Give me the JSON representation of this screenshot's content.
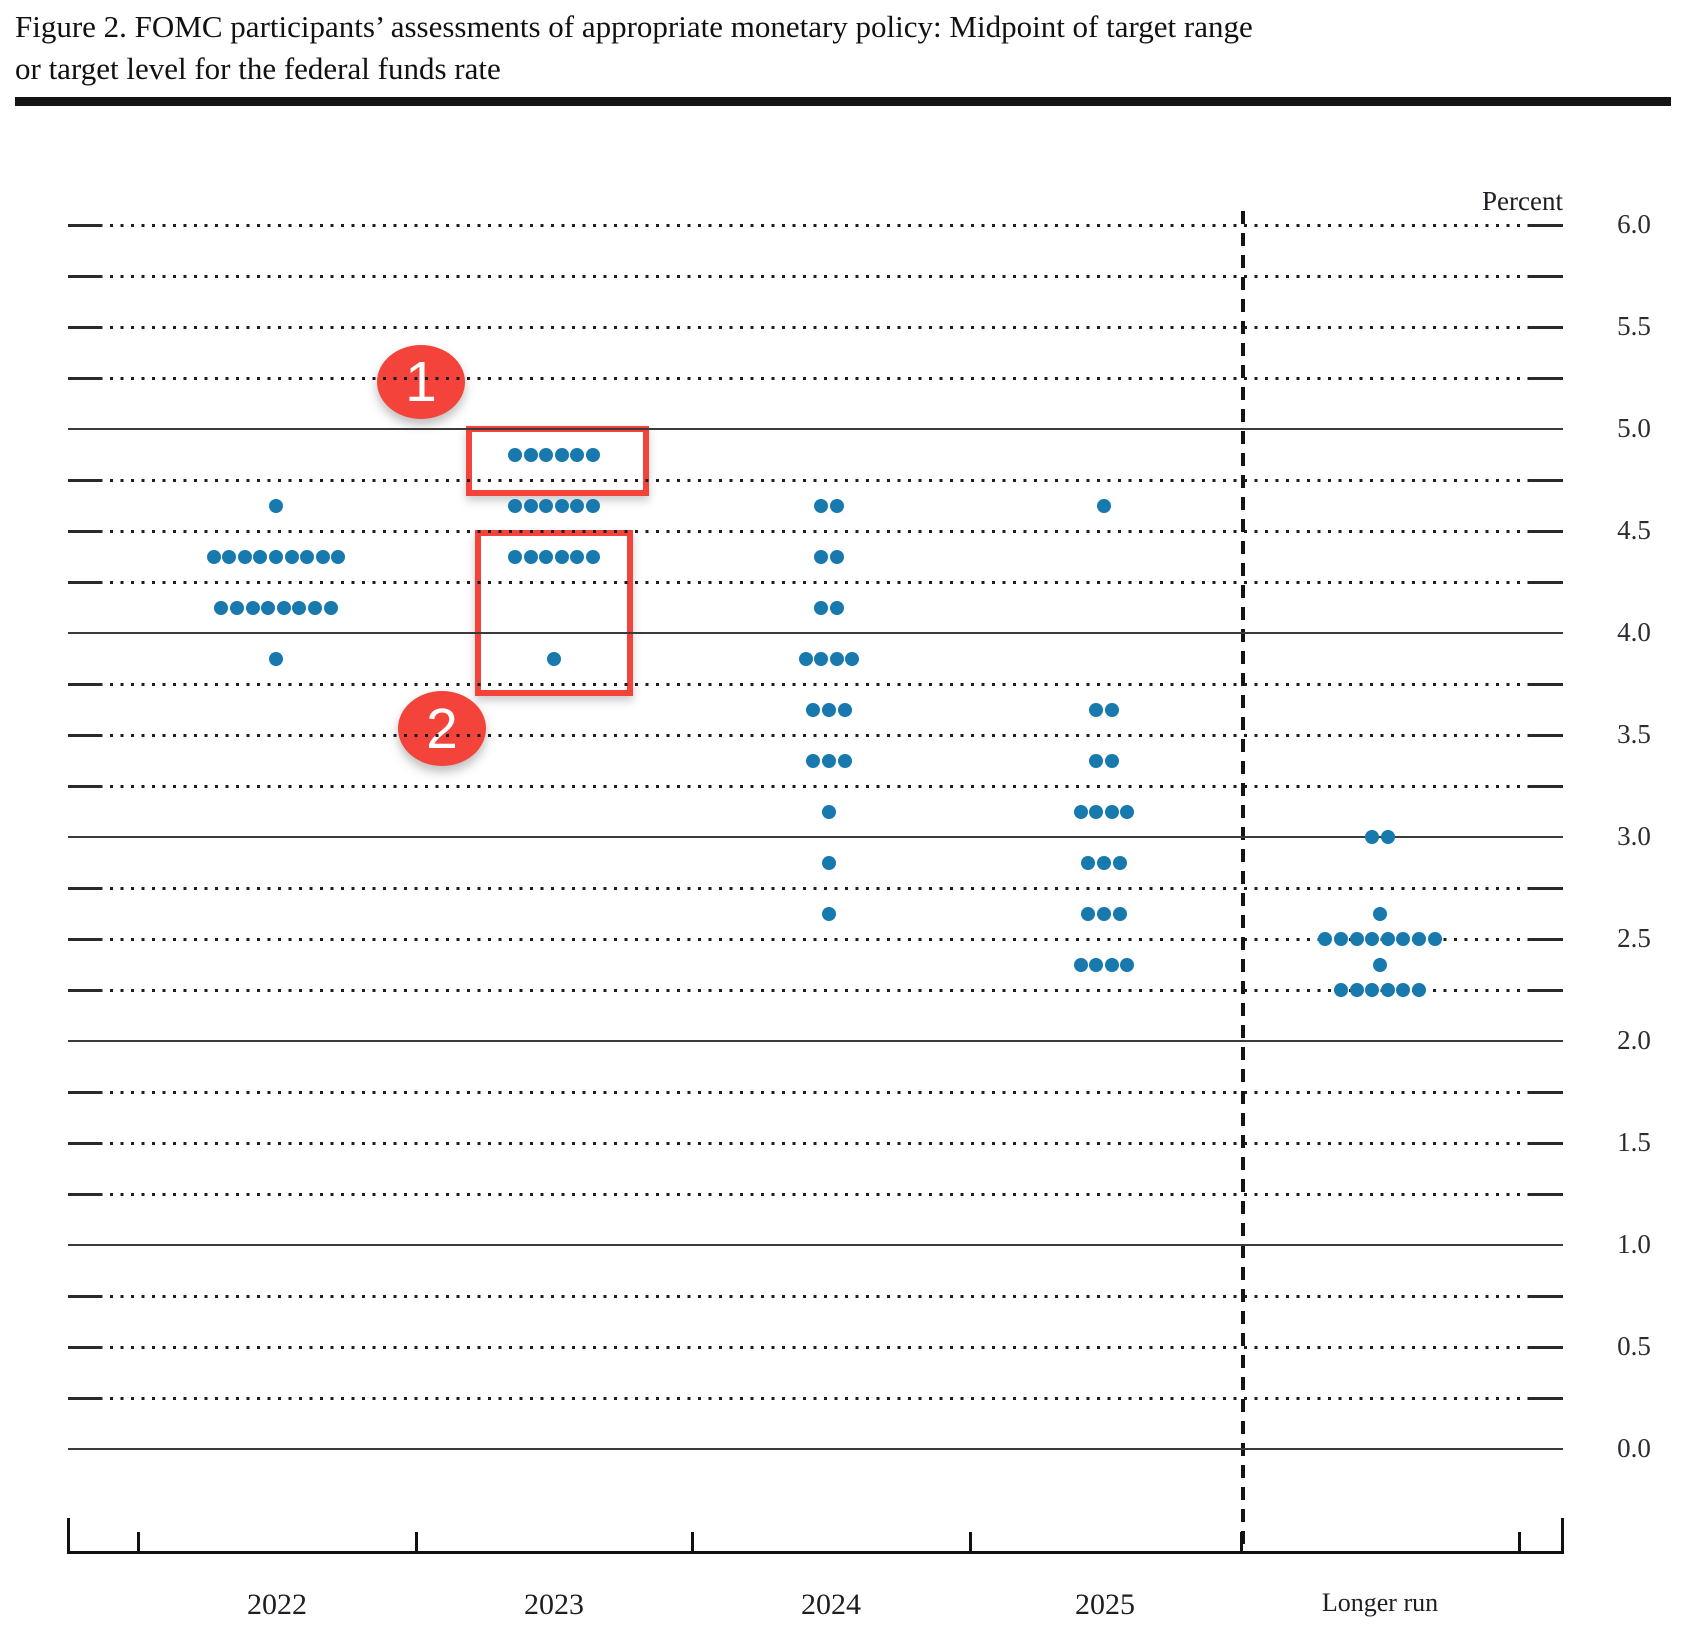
{
  "figure": {
    "title_line1": "Figure 2.  FOMC participants’ assessments of appropriate monetary policy:  Midpoint of target range",
    "title_line2": "or target level for the federal funds rate",
    "unit_label": "Percent"
  },
  "y_axis": {
    "tick_labels": [
      "6.0",
      "5.5",
      "5.0",
      "4.5",
      "4.0",
      "3.5",
      "3.0",
      "2.5",
      "2.0",
      "1.5",
      "1.0",
      "0.5",
      "0.0"
    ]
  },
  "x_axis": {
    "labels": [
      "2022",
      "2023",
      "2024",
      "2025",
      "Longer run"
    ]
  },
  "annotations": {
    "accent_color": "#f4433b",
    "callouts": [
      {
        "label": "1"
      },
      {
        "label": "2"
      }
    ]
  },
  "chart_data": {
    "type": "scatter",
    "title": "FOMC participants’ assessments of appropriate monetary policy: Midpoint of target range or target level for the federal funds rate",
    "ylabel": "Percent",
    "ylim": [
      0,
      6
    ],
    "ytick_minor_step": 0.25,
    "ytick_label_step": 0.5,
    "grid": "dotted lines every 0.25; solid lines at whole percents; dashed vertical separator before Longer run",
    "legend_position": "none",
    "dot_color": "#1779ad",
    "categories": [
      "2022",
      "2023",
      "2024",
      "2025",
      "Longer run"
    ],
    "series": [
      {
        "name": "2022",
        "dots": [
          {
            "rate": 4.625,
            "count": 1
          },
          {
            "rate": 4.375,
            "count": 9
          },
          {
            "rate": 4.125,
            "count": 8
          },
          {
            "rate": 3.875,
            "count": 1
          }
        ]
      },
      {
        "name": "2023",
        "dots": [
          {
            "rate": 4.875,
            "count": 6
          },
          {
            "rate": 4.625,
            "count": 6
          },
          {
            "rate": 4.375,
            "count": 6
          },
          {
            "rate": 3.875,
            "count": 1
          }
        ]
      },
      {
        "name": "2024",
        "dots": [
          {
            "rate": 4.625,
            "count": 2
          },
          {
            "rate": 4.375,
            "count": 2
          },
          {
            "rate": 4.125,
            "count": 2
          },
          {
            "rate": 3.875,
            "count": 4
          },
          {
            "rate": 3.625,
            "count": 3
          },
          {
            "rate": 3.375,
            "count": 3
          },
          {
            "rate": 3.125,
            "count": 1
          },
          {
            "rate": 2.875,
            "count": 1
          },
          {
            "rate": 2.625,
            "count": 1
          }
        ]
      },
      {
        "name": "2025",
        "dots": [
          {
            "rate": 4.625,
            "count": 1
          },
          {
            "rate": 3.625,
            "count": 2
          },
          {
            "rate": 3.375,
            "count": 2
          },
          {
            "rate": 3.125,
            "count": 4
          },
          {
            "rate": 2.875,
            "count": 3
          },
          {
            "rate": 2.625,
            "count": 3
          },
          {
            "rate": 2.375,
            "count": 4
          }
        ]
      },
      {
        "name": "Longer run",
        "dots": [
          {
            "rate": 3.0,
            "count": 2
          },
          {
            "rate": 2.625,
            "count": 1
          },
          {
            "rate": 2.5,
            "count": 8
          },
          {
            "rate": 2.375,
            "count": 1
          },
          {
            "rate": 2.25,
            "count": 6
          }
        ]
      }
    ]
  }
}
